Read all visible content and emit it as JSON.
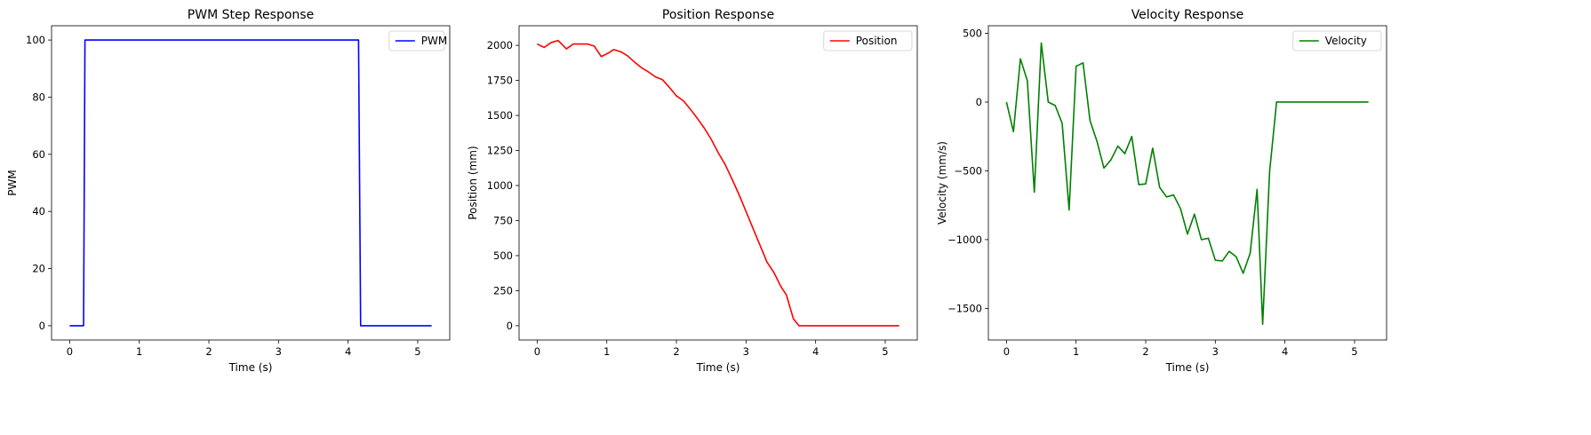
{
  "chart_data": [
    {
      "type": "line",
      "title": "PWM Step Response",
      "xlabel": "Time (s)",
      "ylabel": "PWM",
      "xlim": [
        -0.26,
        5.46
      ],
      "ylim": [
        -5,
        105
      ],
      "xticks": [
        0,
        1,
        2,
        3,
        4,
        5
      ],
      "yticks": [
        0,
        20,
        40,
        60,
        80,
        100
      ],
      "grid": false,
      "legend": "top-right",
      "series": [
        {
          "name": "PWM",
          "color": "#0000ff",
          "x": [
            0,
            0.2,
            0.22,
            4.15,
            4.18,
            5.2
          ],
          "y": [
            0,
            0,
            100,
            100,
            0,
            0
          ]
        }
      ]
    },
    {
      "type": "line",
      "title": "Position Response",
      "xlabel": "Time (s)",
      "ylabel": "Position (mm)",
      "xlim": [
        -0.26,
        5.46
      ],
      "ylim": [
        -102,
        2140
      ],
      "xticks": [
        0,
        1,
        2,
        3,
        4,
        5
      ],
      "yticks": [
        0,
        250,
        500,
        750,
        1000,
        1250,
        1500,
        1750,
        2000
      ],
      "grid": false,
      "legend": "top-right",
      "series": [
        {
          "name": "Position",
          "color": "#ff0000",
          "x": [
            0,
            0.1,
            0.2,
            0.3,
            0.42,
            0.52,
            0.62,
            0.72,
            0.82,
            0.92,
            1.02,
            1.1,
            1.2,
            1.3,
            1.4,
            1.5,
            1.6,
            1.7,
            1.8,
            1.9,
            2.0,
            2.1,
            2.2,
            2.3,
            2.4,
            2.5,
            2.6,
            2.7,
            2.8,
            2.9,
            3.0,
            3.1,
            3.2,
            3.3,
            3.4,
            3.5,
            3.58,
            3.68,
            3.76,
            3.9,
            4.0,
            4.5,
            5.2
          ],
          "y": [
            2010,
            1985,
            2020,
            2035,
            1975,
            2010,
            2010,
            2010,
            1995,
            1920,
            1945,
            1970,
            1955,
            1925,
            1880,
            1840,
            1810,
            1775,
            1755,
            1700,
            1640,
            1605,
            1545,
            1480,
            1410,
            1330,
            1235,
            1150,
            1045,
            935,
            815,
            695,
            575,
            455,
            380,
            280,
            220,
            50,
            0,
            0,
            0,
            0,
            0
          ]
        }
      ]
    },
    {
      "type": "line",
      "title": "Velocity Response",
      "xlabel": "Time (s)",
      "ylabel": "Velocity (mm/s)",
      "xlim": [
        -0.26,
        5.46
      ],
      "ylim": [
        -1730,
        555
      ],
      "xticks": [
        0,
        1,
        2,
        3,
        4,
        5
      ],
      "yticks": [
        -1500,
        -1000,
        -500,
        0,
        500
      ],
      "grid": false,
      "legend": "top-right",
      "series": [
        {
          "name": "Velocity",
          "color": "#008000",
          "x": [
            0,
            0.1,
            0.2,
            0.3,
            0.4,
            0.5,
            0.6,
            0.7,
            0.8,
            0.9,
            1.0,
            1.1,
            1.2,
            1.3,
            1.4,
            1.5,
            1.6,
            1.7,
            1.8,
            1.9,
            2.0,
            2.1,
            2.2,
            2.3,
            2.4,
            2.5,
            2.6,
            2.7,
            2.8,
            2.9,
            3.0,
            3.1,
            3.2,
            3.3,
            3.4,
            3.5,
            3.6,
            3.68,
            3.78,
            3.88,
            4.0,
            4.5,
            5.2
          ],
          "y": [
            0,
            -215,
            315,
            155,
            -655,
            430,
            0,
            -25,
            -155,
            -785,
            260,
            285,
            -135,
            -285,
            -480,
            -420,
            -320,
            -375,
            -250,
            -600,
            -595,
            -335,
            -620,
            -690,
            -675,
            -775,
            -960,
            -815,
            -1000,
            -990,
            -1150,
            -1155,
            -1085,
            -1125,
            -1245,
            -1100,
            -635,
            -1615,
            -505,
            0,
            0,
            0,
            0
          ]
        }
      ]
    }
  ]
}
